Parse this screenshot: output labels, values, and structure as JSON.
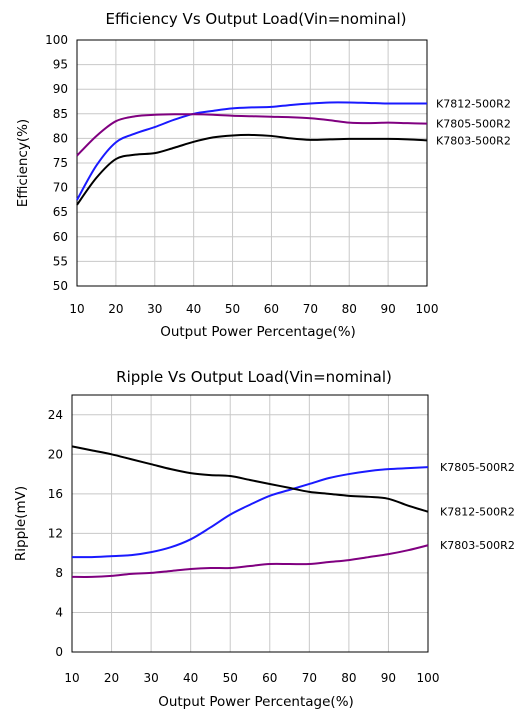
{
  "chart_data": [
    {
      "type": "line",
      "title": "Efficiency Vs Output Load(Vin=nominal)",
      "xlabel": "Output Power Percentage(%)",
      "ylabel": "Efficiency(%)",
      "xlim": [
        10,
        100
      ],
      "ylim": [
        50,
        100
      ],
      "xticks": [
        10,
        20,
        30,
        40,
        50,
        60,
        70,
        80,
        90,
        100
      ],
      "yticks": [
        50,
        55,
        60,
        65,
        70,
        75,
        80,
        85,
        90,
        95,
        100
      ],
      "grid": true,
      "legend_placement": "right",
      "series": [
        {
          "name": "K7812-500R2",
          "color": "#1a1aff",
          "x": [
            10,
            15,
            20,
            25,
            30,
            35,
            40,
            45,
            50,
            55,
            60,
            65,
            70,
            75,
            80,
            85,
            90,
            95,
            100
          ],
          "y": [
            67.5,
            74.5,
            79.2,
            81.0,
            82.3,
            83.8,
            85.0,
            85.6,
            86.1,
            86.3,
            86.4,
            86.8,
            87.1,
            87.3,
            87.3,
            87.2,
            87.1,
            87.1,
            87.1
          ]
        },
        {
          "name": "K7805-500R2",
          "color": "#800080",
          "x": [
            10,
            15,
            20,
            25,
            30,
            35,
            40,
            45,
            50,
            55,
            60,
            65,
            70,
            75,
            80,
            85,
            90,
            95,
            100
          ],
          "y": [
            76.5,
            80.5,
            83.5,
            84.5,
            84.8,
            84.9,
            84.9,
            84.8,
            84.6,
            84.5,
            84.4,
            84.3,
            84.1,
            83.7,
            83.2,
            83.1,
            83.2,
            83.1,
            83.0
          ]
        },
        {
          "name": "K7803-500R2",
          "color": "#000000",
          "x": [
            10,
            15,
            20,
            25,
            30,
            35,
            40,
            45,
            50,
            55,
            60,
            65,
            70,
            75,
            80,
            85,
            90,
            95,
            100
          ],
          "y": [
            66.5,
            72.0,
            75.8,
            76.7,
            77.0,
            78.1,
            79.3,
            80.2,
            80.6,
            80.7,
            80.5,
            80.0,
            79.7,
            79.8,
            79.9,
            79.9,
            79.9,
            79.8,
            79.6
          ]
        }
      ]
    },
    {
      "type": "line",
      "title": "Ripple Vs Output Load(Vin=nominal)",
      "xlabel": "Output Power Percentage(%)",
      "ylabel": "Ripple(mV)",
      "xlim": [
        10,
        100
      ],
      "ylim": [
        0,
        26
      ],
      "xticks": [
        10,
        20,
        30,
        40,
        50,
        60,
        70,
        80,
        90,
        100
      ],
      "yticks": [
        0,
        4,
        8,
        12,
        16,
        20,
        24
      ],
      "grid": true,
      "legend_placement": "right",
      "series": [
        {
          "name": "K7805-500R2",
          "color": "#1a1aff",
          "x": [
            10,
            15,
            20,
            25,
            30,
            35,
            40,
            45,
            50,
            55,
            60,
            65,
            70,
            75,
            80,
            85,
            90,
            95,
            100
          ],
          "y": [
            9.6,
            9.6,
            9.7,
            9.8,
            10.1,
            10.6,
            11.4,
            12.6,
            13.9,
            14.9,
            15.8,
            16.4,
            17.0,
            17.6,
            18.0,
            18.3,
            18.5,
            18.6,
            18.7
          ]
        },
        {
          "name": "K7812-500R2",
          "color": "#000000",
          "x": [
            10,
            15,
            20,
            25,
            30,
            35,
            40,
            45,
            50,
            55,
            60,
            65,
            70,
            75,
            80,
            85,
            90,
            95,
            100
          ],
          "y": [
            20.8,
            20.4,
            20.0,
            19.5,
            19.0,
            18.5,
            18.1,
            17.9,
            17.8,
            17.4,
            17.0,
            16.6,
            16.2,
            16.0,
            15.8,
            15.7,
            15.5,
            14.8,
            14.2
          ]
        },
        {
          "name": "K7803-500R2",
          "color": "#800080",
          "x": [
            10,
            15,
            20,
            25,
            30,
            35,
            40,
            45,
            50,
            55,
            60,
            65,
            70,
            75,
            80,
            85,
            90,
            95,
            100
          ],
          "y": [
            7.6,
            7.6,
            7.7,
            7.9,
            8.0,
            8.2,
            8.4,
            8.5,
            8.5,
            8.7,
            8.9,
            8.9,
            8.9,
            9.1,
            9.3,
            9.6,
            9.9,
            10.3,
            10.8
          ]
        }
      ]
    }
  ]
}
